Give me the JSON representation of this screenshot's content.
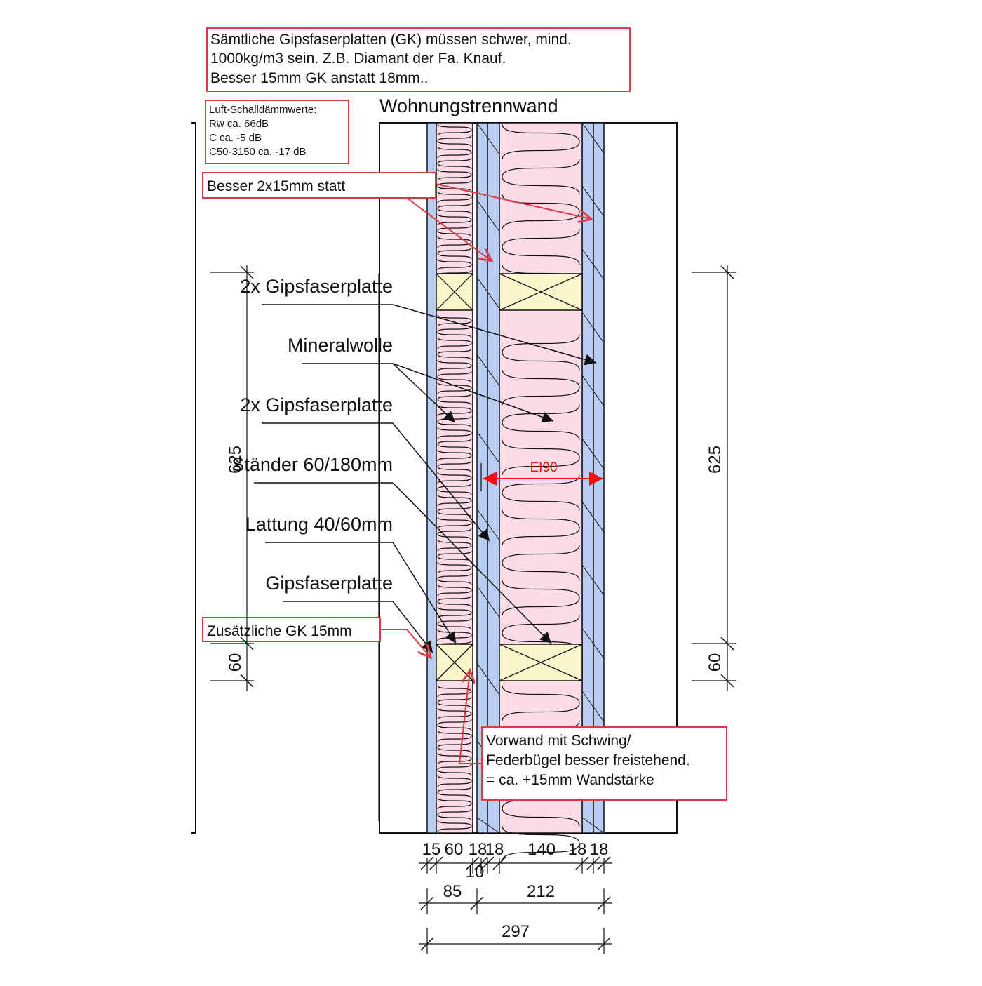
{
  "title": "Wohnungstrennwand",
  "notes": {
    "top": [
      "Sämtliche Gipsfaserplatten (GK) müssen schwer, mind.",
      "1000kg/m3 sein. Z.B. Diamant der Fa. Knauf.",
      "Besser 15mm GK anstatt 18mm.."
    ],
    "acoustic": [
      "Luft-Schalldämmwerte:",
      "Rw ca. 66dB",
      "C ca. -5 dB",
      "C50-3150 ca. -17 dB"
    ],
    "besser": "Besser 2x15mm statt",
    "zusaetzlich": "Zusätzliche GK 15mm",
    "vorwand": [
      "Vorwand mit Schwing/",
      "Federbügel besser freistehend.",
      "= ca. +15mm Wandstärke"
    ]
  },
  "layer_labels": [
    "2x Gipsfaserplatte",
    "Mineralwolle",
    "2x Gipsfaserplatte",
    "Ständer 60/180mm",
    "Lattung 40/60mm",
    "Gipsfaserplatte"
  ],
  "fire_rating": "EI90",
  "dimensions": {
    "left_625": "625",
    "left_60": "60",
    "right_625": "625",
    "right_60": "60",
    "row1": [
      "15",
      "60",
      "18",
      "18",
      "140",
      "18",
      "18"
    ],
    "row1b": "10",
    "row2": [
      "85",
      "212"
    ],
    "row3": "297"
  },
  "colors": {
    "board": "#b9cdf3",
    "insulation": "#fbdce6",
    "wood": "#fbf5cb",
    "red": "#dd3a47",
    "line": "#111111",
    "fire": "#ee1111"
  }
}
